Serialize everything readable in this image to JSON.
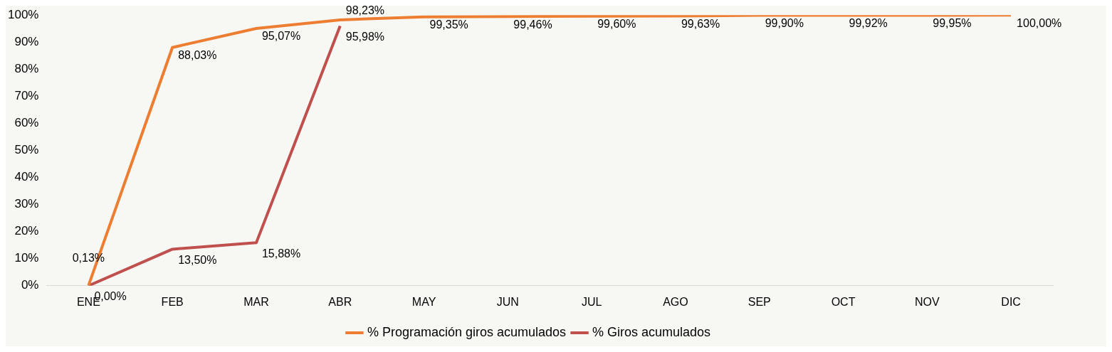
{
  "chart_data": {
    "type": "line",
    "categories": [
      "ENE",
      "FEB",
      "MAR",
      "ABR",
      "MAY",
      "JUN",
      "JUL",
      "AGO",
      "SEP",
      "OCT",
      "NOV",
      "DIC"
    ],
    "series": [
      {
        "name": "% Programación giros acumulados",
        "color": "#ed7d31",
        "values": [
          0.13,
          88.03,
          95.07,
          98.23,
          99.35,
          99.46,
          99.6,
          99.63,
          99.9,
          99.92,
          99.95,
          100
        ],
        "value_labels": [
          "0,13%",
          "88,03%",
          "95,07%",
          "98,23%",
          "99,35%",
          "99,46%",
          "99,60%",
          "99,63%",
          "99,90%",
          "99,92%",
          "99,95%",
          "100,00%"
        ]
      },
      {
        "name": "% Giros acumulados",
        "color": "#c0504d",
        "values": [
          0,
          13.5,
          15.88,
          95.98,
          null,
          null,
          null,
          null,
          null,
          null,
          null,
          null
        ],
        "value_labels": [
          "0,00%",
          "13,50%",
          "15,88%",
          "95,98%",
          null,
          null,
          null,
          null,
          null,
          null,
          null,
          null
        ]
      }
    ],
    "ylim": [
      0,
      100
    ],
    "yticks": [
      {
        "value": 0,
        "label": "0%"
      },
      {
        "value": 10,
        "label": "10%"
      },
      {
        "value": 20,
        "label": "20%"
      },
      {
        "value": 30,
        "label": "30%"
      },
      {
        "value": 40,
        "label": "40%"
      },
      {
        "value": 50,
        "label": "50%"
      },
      {
        "value": 60,
        "label": "60%"
      },
      {
        "value": 70,
        "label": "70%"
      },
      {
        "value": 80,
        "label": "80%"
      },
      {
        "value": 90,
        "label": "90%"
      },
      {
        "value": 100,
        "label": "100%"
      }
    ],
    "grid": false,
    "legend": "bottom",
    "marker": "none",
    "line_style": "solid"
  }
}
